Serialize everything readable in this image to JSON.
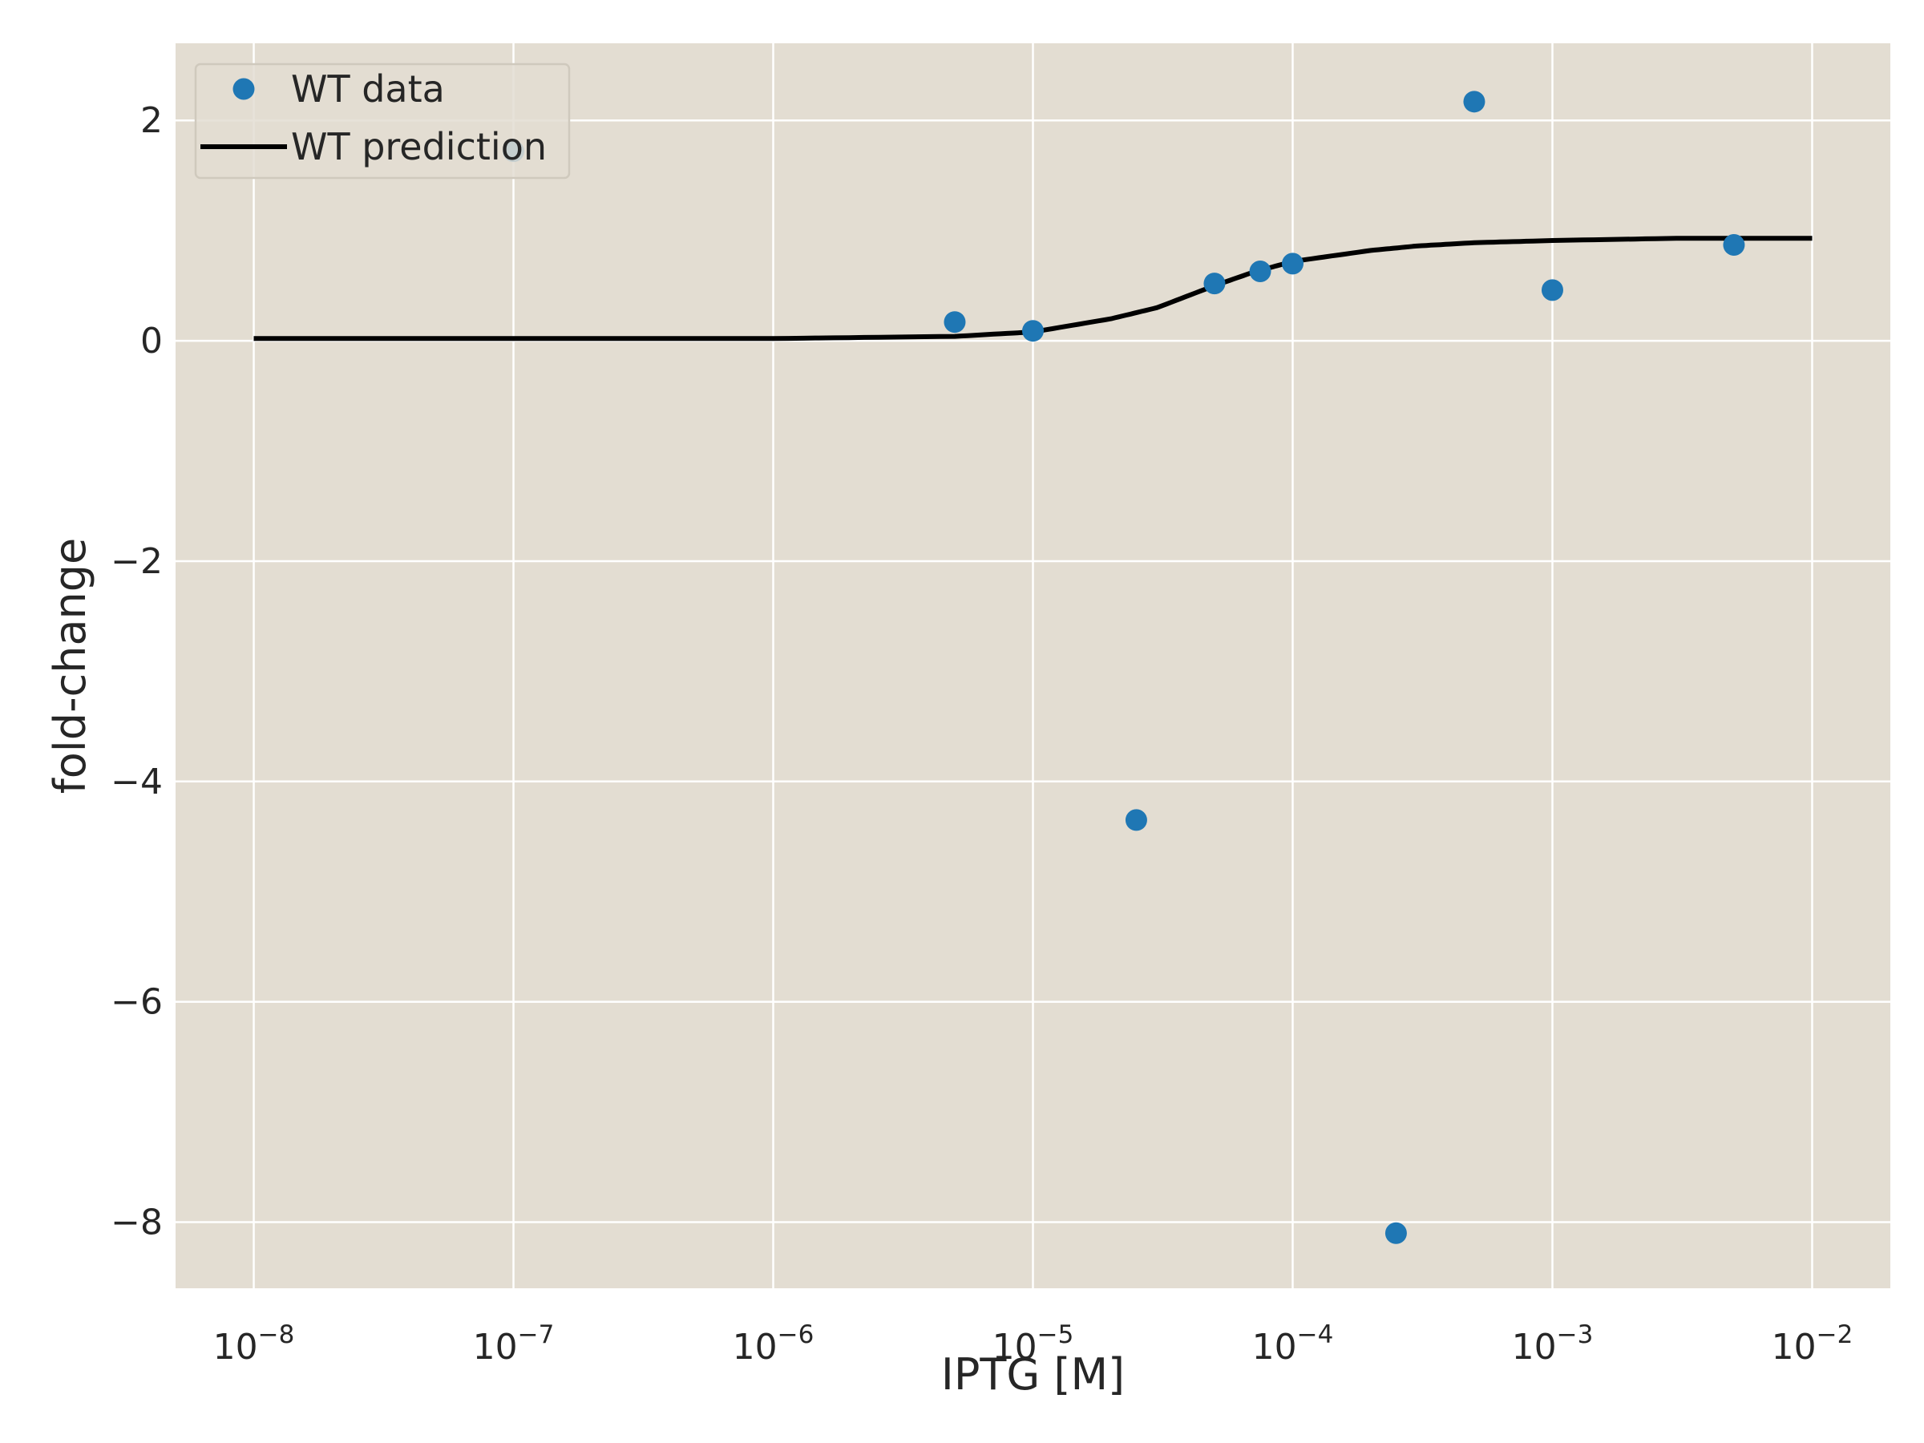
{
  "chart_data": {
    "type": "scatter",
    "title": "",
    "xlabel": "IPTG [M]",
    "ylabel": "fold-change",
    "xscale": "log",
    "xlim": [
      5e-09,
      0.02
    ],
    "ylim": [
      -8.6,
      2.7
    ],
    "grid": true,
    "legend_position": "top-left",
    "background_color": "#e3ddd2",
    "x_ticks": [
      {
        "value": 1e-08,
        "base": "10",
        "exp": "−8"
      },
      {
        "value": 1e-07,
        "base": "10",
        "exp": "−7"
      },
      {
        "value": 1e-06,
        "base": "10",
        "exp": "−6"
      },
      {
        "value": 1e-05,
        "base": "10",
        "exp": "−5"
      },
      {
        "value": 0.0001,
        "base": "10",
        "exp": "−4"
      },
      {
        "value": 0.001,
        "base": "10",
        "exp": "−3"
      },
      {
        "value": 0.01,
        "base": "10",
        "exp": "−2"
      }
    ],
    "y_ticks": [
      {
        "value": 2,
        "label": "2"
      },
      {
        "value": 0,
        "label": "0"
      },
      {
        "value": -2,
        "label": "−2"
      },
      {
        "value": -4,
        "label": "−4"
      },
      {
        "value": -6,
        "label": "−6"
      },
      {
        "value": -8,
        "label": "−8"
      }
    ],
    "series": [
      {
        "name": "WT data",
        "kind": "scatter",
        "color": "#1f77b4",
        "x": [
          1e-07,
          5e-06,
          1e-05,
          2.5e-05,
          5e-05,
          7.5e-05,
          0.0001,
          0.00025,
          0.0005,
          0.001,
          0.005
        ],
        "y": [
          1.72,
          0.17,
          0.09,
          -4.35,
          0.52,
          0.63,
          0.7,
          -8.1,
          2.17,
          0.46,
          0.87
        ]
      },
      {
        "name": "WT prediction",
        "kind": "line",
        "color": "#000000",
        "x": [
          1e-08,
          1e-07,
          1e-06,
          5e-06,
          1e-05,
          2e-05,
          3e-05,
          5e-05,
          7e-05,
          0.0001,
          0.0002,
          0.0003,
          0.0005,
          0.001,
          0.003,
          0.01
        ],
        "y": [
          0.02,
          0.02,
          0.02,
          0.04,
          0.08,
          0.2,
          0.3,
          0.5,
          0.62,
          0.72,
          0.82,
          0.86,
          0.89,
          0.91,
          0.93,
          0.93
        ]
      }
    ]
  }
}
